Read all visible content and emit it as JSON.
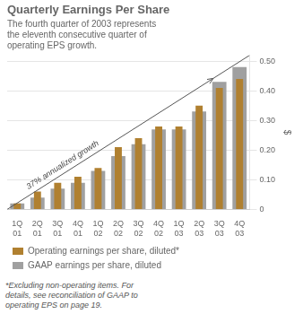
{
  "chart_data": {
    "type": "bar",
    "title": "Quarterly Earnings Per Share",
    "subtitle": "The fourth quarter of 2003 represents\nthe eleventh consecutive quarter of\noperating EPS growth.",
    "categories": [
      "1Q\n01",
      "2Q\n01",
      "3Q\n01",
      "4Q\n01",
      "1Q\n02",
      "2Q\n02",
      "3Q\n02",
      "4Q\n02",
      "1Q\n03",
      "2Q\n03",
      "3Q\n03",
      "4Q\n03"
    ],
    "series": [
      {
        "name": "GAAP earnings per share, diluted",
        "color": "#a0a0a0",
        "values": [
          0.02,
          0.04,
          0.07,
          0.09,
          0.13,
          0.18,
          0.22,
          0.27,
          0.27,
          0.33,
          0.43,
          0.48
        ]
      },
      {
        "name": "Operating earnings per share, diluted*",
        "color": "#b08030",
        "values": [
          0.02,
          0.06,
          0.09,
          0.11,
          0.14,
          0.21,
          0.24,
          0.28,
          0.28,
          0.35,
          0.41,
          0.44
        ]
      }
    ],
    "ylabel": "$",
    "ylim": [
      0,
      0.52
    ],
    "yticks": [
      0,
      {
        "value": 0.1,
        "label": "0.10"
      },
      {
        "value": 0.2,
        "label": "0.20"
      },
      {
        "value": 0.3,
        "label": "0.30"
      },
      {
        "value": 0.4,
        "label": "0.40"
      },
      {
        "value": 0.5,
        "label": "0.50"
      }
    ],
    "grid": true,
    "legend": "bottom",
    "trend_line": [
      0,
      0.52
    ],
    "annotation": "37% annualized growth",
    "footnote": "*Excluding non-operating items. For\ndetails, see reconciliation of GAAP to\noperating EPS on page 19."
  }
}
